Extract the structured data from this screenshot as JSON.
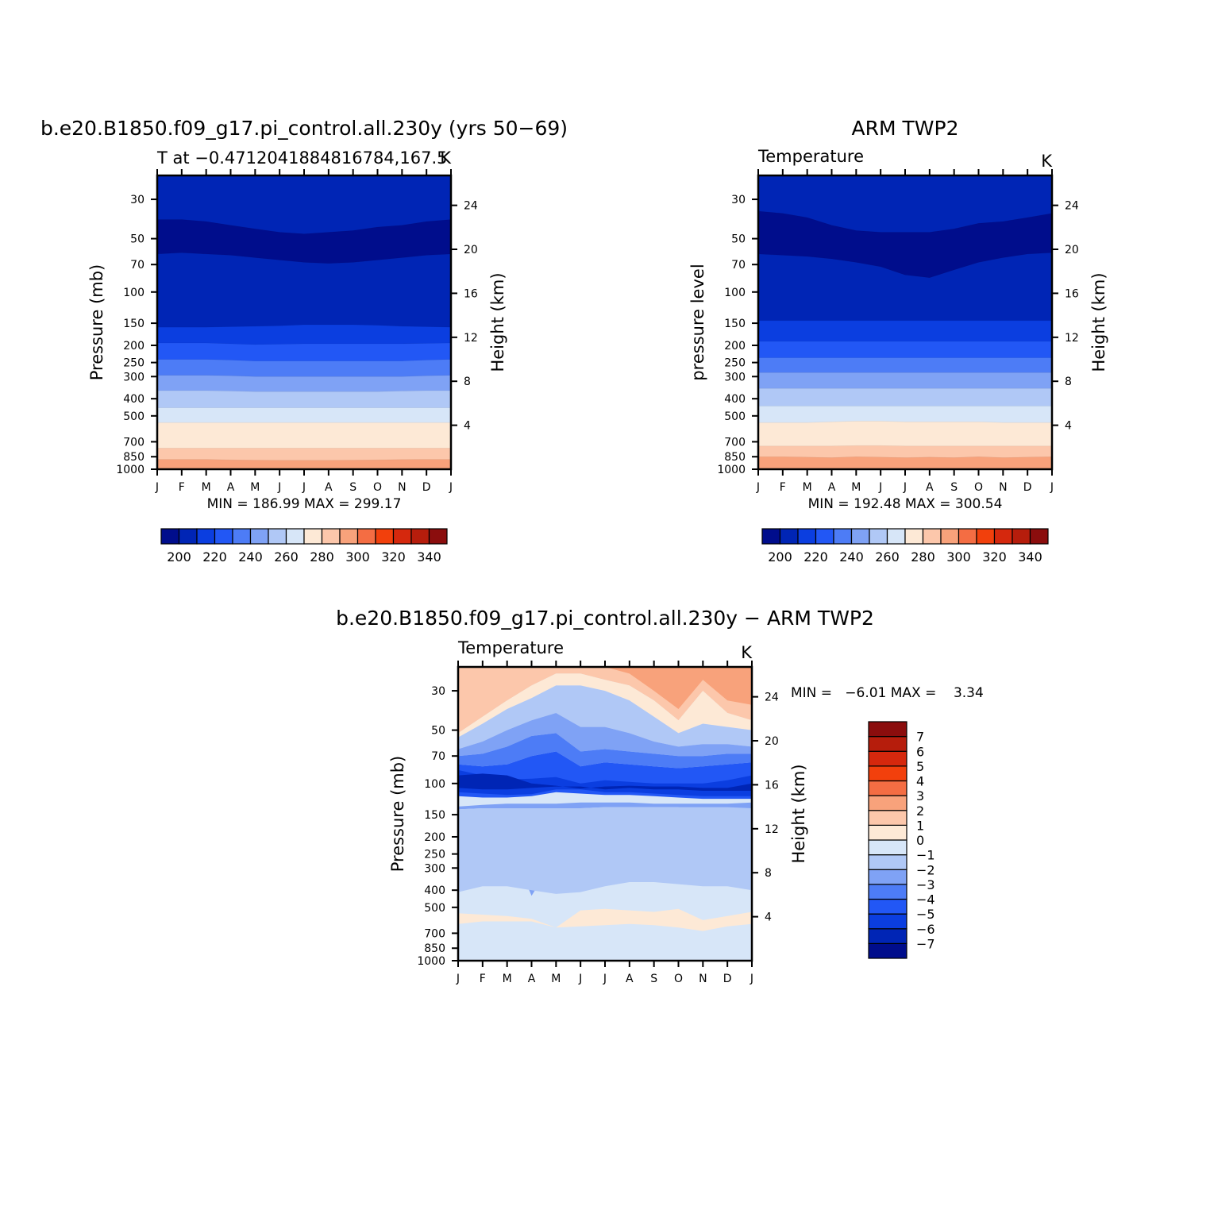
{
  "chart_data": [
    {
      "type": "heatmap",
      "id": "model",
      "title": "b.e20.B1850.f09_g17.pi_control.all.230y (yrs 50−69)",
      "subtitle_left": "T at −0.4712041884816784,167.5",
      "subtitle_right": "K",
      "xlabel": "",
      "ylabel": "Pressure (mb)",
      "ylabel_right": "Height (km)",
      "x_ticks": [
        "J",
        "F",
        "M",
        "A",
        "M",
        "J",
        "J",
        "A",
        "S",
        "O",
        "N",
        "D",
        "J"
      ],
      "y_ticks": [
        30,
        50,
        70,
        100,
        150,
        200,
        250,
        300,
        400,
        500,
        700,
        850,
        1000
      ],
      "y_ticks_right": [
        24,
        20,
        16,
        12,
        8,
        4
      ],
      "ylim": [
        1000,
        22
      ],
      "y_scale": "log",
      "x_values": [
        0,
        1,
        2,
        3,
        4,
        5,
        6,
        7,
        8,
        9,
        10,
        11,
        12
      ],
      "contour_levels": [
        195,
        200,
        205,
        210,
        215,
        220,
        225,
        230,
        235,
        240,
        245,
        250,
        255,
        260,
        265,
        270,
        275,
        280,
        285,
        290,
        295,
        300
      ],
      "layers": [
        {
          "level": 295,
          "p": [
            880,
            880,
            880,
            885,
            888,
            890,
            890,
            890,
            888,
            885,
            882,
            880,
            880
          ]
        },
        {
          "level": 285,
          "p": [
            760,
            760,
            760,
            760,
            760,
            760,
            760,
            760,
            760,
            760,
            760,
            760,
            760
          ]
        },
        {
          "level": 270,
          "p": [
            545,
            545,
            545,
            545,
            545,
            545,
            545,
            545,
            545,
            545,
            545,
            545,
            545
          ]
        },
        {
          "level": 260,
          "p": [
            450,
            450,
            450,
            450,
            450,
            450,
            450,
            450,
            450,
            450,
            450,
            450,
            450
          ]
        },
        {
          "level": 250,
          "p": [
            360,
            360,
            360,
            362,
            365,
            365,
            365,
            365,
            365,
            365,
            362,
            360,
            360
          ]
        },
        {
          "level": 240,
          "p": [
            295,
            295,
            295,
            297,
            300,
            300,
            300,
            300,
            300,
            300,
            300,
            297,
            295
          ]
        },
        {
          "level": 230,
          "p": [
            240,
            240,
            240,
            242,
            245,
            245,
            245,
            245,
            245,
            245,
            245,
            242,
            240
          ]
        },
        {
          "level": 220,
          "p": [
            194,
            194,
            194,
            196,
            198,
            197,
            196,
            196,
            196,
            196,
            196,
            195,
            194
          ]
        },
        {
          "level": 210,
          "p": [
            158,
            158,
            158,
            157,
            156,
            155,
            153,
            153,
            153,
            154,
            156,
            157,
            158
          ]
        },
        {
          "level": 200,
          "p": [
            61,
            60,
            61,
            62,
            64,
            66,
            68,
            69,
            68,
            66,
            64,
            62,
            61
          ]
        },
        {
          "level": 195,
          "p": [
            39,
            39,
            40,
            42,
            44,
            46,
            47,
            46,
            45,
            43,
            42,
            40,
            39
          ]
        }
      ],
      "min_max": "MIN = 186.99 MAX = 299.17",
      "colorbar": {
        "colors": [
          "#000d8c",
          "#0025b5",
          "#0b3ee0",
          "#2257f5",
          "#4d7cf6",
          "#7fa2f5",
          "#b0c8f6",
          "#d7e6f8",
          "#fde9d6",
          "#fcc7ab",
          "#f8a27b",
          "#f46d43",
          "#f2400c",
          "#d5280d",
          "#b61d0c",
          "#8b0d0d"
        ],
        "labels": [
          200,
          220,
          240,
          260,
          280,
          300,
          320,
          340
        ]
      }
    },
    {
      "type": "heatmap",
      "id": "obs",
      "title": "ARM TWP2",
      "subtitle_left": "Temperature",
      "subtitle_right": "K",
      "xlabel": "",
      "ylabel": "pressure level",
      "ylabel_right": "Height (km)",
      "x_ticks": [
        "J",
        "F",
        "M",
        "A",
        "M",
        "J",
        "J",
        "A",
        "S",
        "O",
        "N",
        "D",
        "J"
      ],
      "y_ticks": [
        30,
        50,
        70,
        100,
        150,
        200,
        250,
        300,
        400,
        500,
        700,
        850,
        1000
      ],
      "y_ticks_right": [
        24,
        20,
        16,
        12,
        8,
        4
      ],
      "ylim": [
        1000,
        22
      ],
      "y_scale": "log",
      "x_values": [
        0,
        1,
        2,
        3,
        4,
        5,
        6,
        7,
        8,
        9,
        10,
        11,
        12
      ],
      "contour_levels": [
        195,
        200,
        205,
        210,
        215,
        220,
        225,
        230,
        235,
        240,
        245,
        250,
        255,
        260,
        265,
        270,
        275,
        280,
        285,
        290,
        295,
        300
      ],
      "layers": [
        {
          "level": 295,
          "p": [
            850,
            850,
            855,
            860,
            850,
            855,
            860,
            855,
            860,
            850,
            860,
            855,
            850
          ]
        },
        {
          "level": 285,
          "p": [
            740,
            740,
            740,
            740,
            735,
            735,
            740,
            740,
            740,
            740,
            740,
            740,
            740
          ]
        },
        {
          "level": 270,
          "p": [
            545,
            545,
            545,
            540,
            535,
            535,
            540,
            540,
            540,
            540,
            545,
            545,
            545
          ]
        },
        {
          "level": 260,
          "p": [
            440,
            440,
            440,
            440,
            440,
            440,
            440,
            440,
            440,
            440,
            440,
            440,
            440
          ]
        },
        {
          "level": 250,
          "p": [
            350,
            350,
            350,
            350,
            350,
            350,
            350,
            350,
            350,
            350,
            350,
            350,
            350
          ]
        },
        {
          "level": 240,
          "p": [
            285,
            285,
            285,
            285,
            285,
            285,
            285,
            285,
            285,
            285,
            285,
            285,
            285
          ]
        },
        {
          "level": 230,
          "p": [
            235,
            235,
            235,
            235,
            235,
            235,
            235,
            235,
            235,
            235,
            235,
            235,
            235
          ]
        },
        {
          "level": 220,
          "p": [
            190,
            190,
            190,
            190,
            190,
            190,
            190,
            190,
            190,
            190,
            190,
            190,
            190
          ]
        },
        {
          "level": 210,
          "p": [
            145,
            145,
            145,
            145,
            145,
            145,
            145,
            145,
            145,
            145,
            145,
            145,
            145
          ]
        },
        {
          "level": 200,
          "p": [
            61,
            62,
            63,
            65,
            68,
            72,
            80,
            83,
            75,
            68,
            64,
            61,
            60
          ]
        },
        {
          "level": 195,
          "p": [
            35,
            36,
            38,
            42,
            45,
            46,
            46,
            46,
            44,
            41,
            40,
            38,
            36
          ]
        }
      ],
      "min_max": "MIN = 192.48 MAX = 300.54",
      "colorbar": {
        "colors": [
          "#000d8c",
          "#0025b5",
          "#0b3ee0",
          "#2257f5",
          "#4d7cf6",
          "#7fa2f5",
          "#b0c8f6",
          "#d7e6f8",
          "#fde9d6",
          "#fcc7ab",
          "#f8a27b",
          "#f46d43",
          "#f2400c",
          "#d5280d",
          "#b61d0c",
          "#8b0d0d"
        ],
        "labels": [
          200,
          220,
          240,
          260,
          280,
          300,
          320,
          340
        ]
      }
    },
    {
      "type": "heatmap",
      "id": "diff",
      "title": "b.e20.B1850.f09_g17.pi_control.all.230y − ARM TWP2",
      "subtitle_left": "Temperature",
      "subtitle_right": "K",
      "xlabel": "",
      "ylabel": "Pressure (mb)",
      "ylabel_right": "Height (km)",
      "x_ticks": [
        "J",
        "F",
        "M",
        "A",
        "M",
        "J",
        "J",
        "A",
        "S",
        "O",
        "N",
        "D",
        "J"
      ],
      "y_ticks": [
        30,
        50,
        70,
        100,
        150,
        200,
        250,
        300,
        400,
        500,
        700,
        850,
        1000
      ],
      "y_ticks_right": [
        24,
        20,
        16,
        12,
        8,
        4
      ],
      "ylim": [
        1000,
        22
      ],
      "y_scale": "log",
      "x_values": [
        0,
        1,
        2,
        3,
        4,
        5,
        6,
        7,
        8,
        9,
        10,
        11,
        12
      ],
      "base_color": "#d7e6f8",
      "layers": [
        {
          "color": "#fcc7ab",
          "top": [
            22,
            22,
            22,
            22,
            22,
            22,
            22,
            22,
            22,
            22,
            22,
            22,
            22
          ],
          "bottom": [
            52,
            42,
            34,
            28,
            24,
            24,
            26,
            28,
            34,
            44,
            30,
            40,
            44
          ]
        },
        {
          "color": "#f8a27b",
          "top": [
            22,
            22,
            22,
            22,
            22,
            22,
            22,
            22,
            22,
            22,
            22,
            22,
            22
          ],
          "bottom": [
            22,
            22,
            22,
            22,
            22,
            22,
            22,
            24,
            30,
            38,
            26,
            34,
            36
          ]
        },
        {
          "color": "#fde9d6",
          "top": [
            52,
            42,
            34,
            28,
            24,
            24,
            26,
            28,
            34,
            44,
            30,
            40,
            44
          ],
          "bottom": [
            55,
            46,
            38,
            33,
            28,
            28,
            30,
            34,
            42,
            52,
            46,
            48,
            50
          ]
        },
        {
          "color": "#b0c8f6",
          "top": [
            55,
            46,
            38,
            33,
            28,
            28,
            30,
            34,
            42,
            52,
            46,
            48,
            50
          ],
          "bottom": [
            64,
            58,
            50,
            44,
            40,
            48,
            48,
            52,
            58,
            62,
            60,
            60,
            62
          ]
        },
        {
          "color": "#7fa2f5",
          "top": [
            64,
            58,
            50,
            44,
            40,
            48,
            48,
            52,
            58,
            62,
            60,
            60,
            62
          ],
          "bottom": [
            70,
            68,
            62,
            54,
            52,
            66,
            64,
            66,
            68,
            70,
            70,
            68,
            68
          ]
        },
        {
          "color": "#4d7cf6",
          "top": [
            70,
            68,
            62,
            54,
            52,
            66,
            64,
            66,
            68,
            70,
            70,
            68,
            68
          ],
          "bottom": [
            78,
            80,
            78,
            70,
            66,
            80,
            76,
            78,
            80,
            82,
            80,
            78,
            76
          ]
        },
        {
          "color": "#2257f5",
          "top": [
            78,
            80,
            78,
            70,
            66,
            80,
            76,
            78,
            80,
            82,
            80,
            78,
            76
          ],
          "bottom": [
            118,
            120,
            120,
            118,
            112,
            114,
            116,
            116,
            118,
            120,
            122,
            122,
            122
          ]
        },
        {
          "color": "#0b3ee0",
          "top": [
            84,
            90,
            95,
            94,
            92,
            100,
            96,
            98,
            100,
            100,
            100,
            96,
            90
          ],
          "bottom": [
            112,
            114,
            116,
            115,
            108,
            108,
            112,
            112,
            114,
            116,
            118,
            118,
            118
          ]
        },
        {
          "color": "#0025b5",
          "top": [
            90,
            88,
            90,
            100,
            103,
            107,
            104,
            103,
            104,
            104,
            106,
            106,
            100
          ],
          "bottom": [
            106,
            108,
            108,
            106,
            104,
            104,
            108,
            106,
            108,
            108,
            110,
            110,
            110
          ]
        },
        {
          "color": "#7fa2f5",
          "top": [
            135,
            132,
            130,
            130,
            130,
            128,
            128,
            128,
            130,
            130,
            130,
            130,
            128
          ],
          "bottom": [
            140,
            138,
            200,
            430,
            260,
            138,
            136,
            136,
            136,
            136,
            300,
            140,
            138
          ]
        },
        {
          "color": "#b0c8f6",
          "top": [
            140,
            138,
            138,
            138,
            138,
            138,
            136,
            136,
            136,
            136,
            136,
            136,
            138
          ],
          "bottom": [
            410,
            380,
            380,
            400,
            420,
            410,
            380,
            360,
            360,
            370,
            380,
            380,
            400
          ]
        },
        {
          "color": "#fde9d6",
          "top": [
            540,
            550,
            560,
            580,
            650,
            520,
            510,
            520,
            530,
            510,
            590,
            560,
            530
          ],
          "bottom": [
            620,
            600,
            600,
            600,
            650,
            640,
            630,
            620,
            630,
            650,
            680,
            640,
            620
          ]
        }
      ],
      "min_max": "MIN =   −6.01 MAX =    3.34",
      "colorbar": {
        "colors": [
          "#000d8c",
          "#0025b5",
          "#0b3ee0",
          "#2257f5",
          "#4d7cf6",
          "#7fa2f5",
          "#b0c8f6",
          "#d7e6f8",
          "#fde9d6",
          "#fcc7ab",
          "#f8a27b",
          "#f46d43",
          "#f2400c",
          "#d5280d",
          "#b61d0c",
          "#8b0d0d"
        ],
        "labels": [
          -7,
          -6,
          -5,
          -4,
          -3,
          -2,
          -1,
          0,
          1,
          2,
          3,
          4,
          5,
          6,
          7
        ]
      }
    }
  ]
}
